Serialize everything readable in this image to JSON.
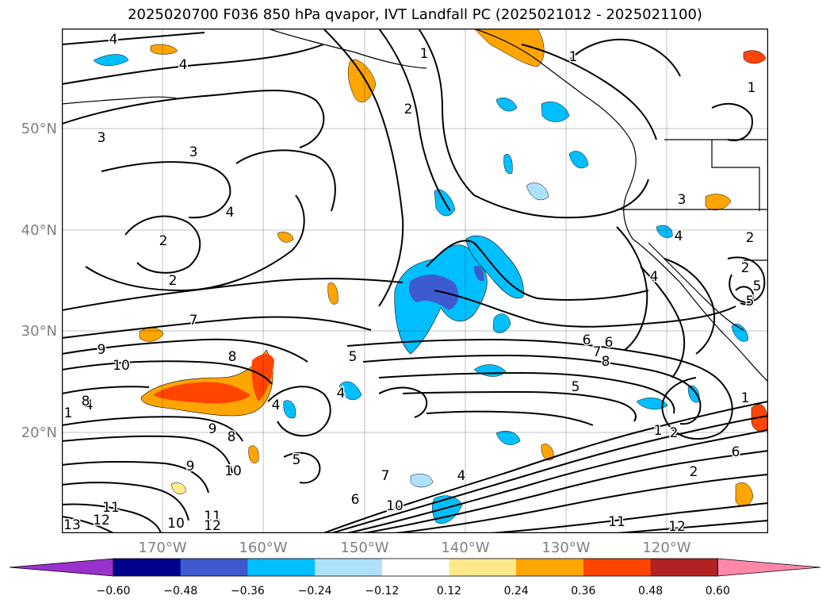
{
  "title": "2025020700 F036 850 hPa qvapor, IVT Landfall PC (2025021012 - 2025021100)",
  "lat_labels": [
    "50°N",
    "40°N",
    "30°N",
    "20°N"
  ],
  "lon_labels": [
    "170°W",
    "160°W",
    "150°W",
    "140°W",
    "130°W",
    "120°W"
  ],
  "colorbar": {
    "colors": [
      "#9932CC",
      "#00008B",
      "#3D5BCF",
      "#00BFFF",
      "#ADE2FA",
      "#FFFFFF",
      "#FFE98A",
      "#FFA500",
      "#FF4500",
      "#B22222",
      "#FF88AA"
    ],
    "tick_labels": [
      "−0.60",
      "−0.48",
      "−0.36",
      "−0.24",
      "−0.12",
      "0.12",
      "0.24",
      "0.36",
      "0.48",
      "0.60"
    ]
  },
  "contour_labels": [
    "4",
    "4",
    "1",
    "1",
    "1",
    "2",
    "3",
    "3",
    "4",
    "2",
    "2",
    "3",
    "4",
    "2",
    "2",
    "5",
    "4",
    "7",
    "6",
    "9",
    "8",
    "5",
    "6",
    "7",
    "10",
    "8",
    "5",
    "4",
    "1",
    "9",
    "8",
    "9",
    "10",
    "5",
    "4",
    "7",
    "4",
    "6",
    "10",
    "11",
    "13",
    "12",
    "10",
    "11",
    "12",
    "11",
    "12",
    "8",
    "4",
    "2",
    "6",
    "1",
    "2",
    "5",
    "1"
  ]
}
